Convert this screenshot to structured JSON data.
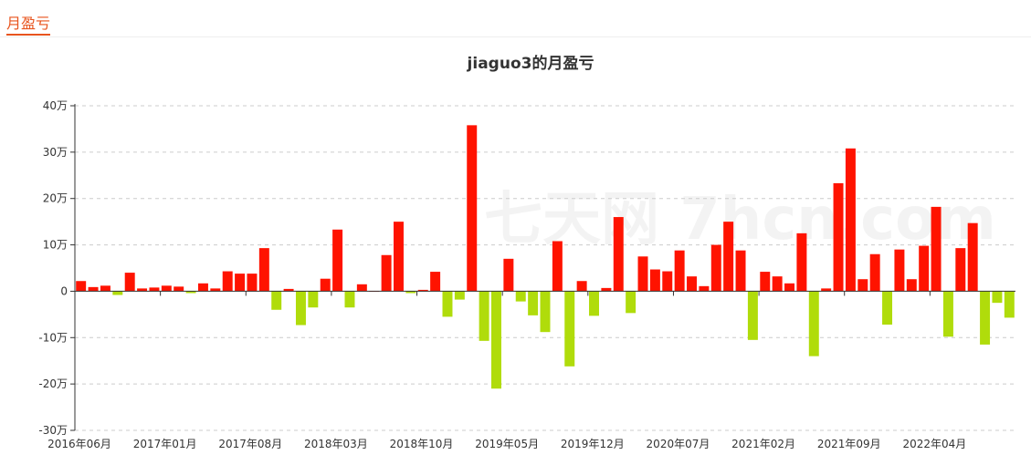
{
  "tabs": [
    {
      "label": "月盈亏"
    }
  ],
  "watermark": "七天网 7hcn.com",
  "colors": {
    "positive": "#ff1300",
    "negative": "#b0dc0b",
    "accent": "#e8541e",
    "grid": "#cccccc"
  },
  "chart_data": {
    "type": "bar",
    "title": "jiaguo3的月盈亏",
    "ylim": [
      -300000,
      400000
    ],
    "y_ticks": [
      {
        "value": 400000,
        "label": "40万"
      },
      {
        "value": 300000,
        "label": "30万"
      },
      {
        "value": 200000,
        "label": "20万"
      },
      {
        "value": 100000,
        "label": "10万"
      },
      {
        "value": 0,
        "label": "0"
      },
      {
        "value": -100000,
        "label": "-10万"
      },
      {
        "value": -200000,
        "label": "-20万"
      },
      {
        "value": -300000,
        "label": "-30万"
      }
    ],
    "x_tick_labels": [
      "2016年06月",
      "2017年01月",
      "2017年08月",
      "2018年03月",
      "2018年10月",
      "2019年05月",
      "2019年12月",
      "2020年07月",
      "2021年02月",
      "2021年09月",
      "2022年04月"
    ],
    "x_tick_step": 7,
    "grid": true,
    "values": [
      22000,
      9000,
      12000,
      -8000,
      40000,
      6000,
      8000,
      12000,
      10000,
      -4000,
      17000,
      6000,
      43000,
      38000,
      38000,
      93000,
      -40000,
      5000,
      -73000,
      -35000,
      27000,
      133000,
      -35000,
      15000,
      0,
      78000,
      150000,
      -4000,
      3000,
      42000,
      -55000,
      -18000,
      358000,
      -107000,
      -210000,
      70000,
      -22000,
      -52000,
      -88000,
      108000,
      -162000,
      22000,
      -53000,
      7000,
      160000,
      -47000,
      75000,
      47000,
      43000,
      88000,
      32000,
      11000,
      100000,
      150000,
      88000,
      -105000,
      42000,
      32000,
      17000,
      125000,
      -140000,
      6000,
      233000,
      308000,
      26000,
      80000,
      -72000,
      90000,
      26000,
      98000,
      182000,
      -98000,
      93000,
      147000,
      -115000,
      -25000,
      -57000
    ]
  }
}
